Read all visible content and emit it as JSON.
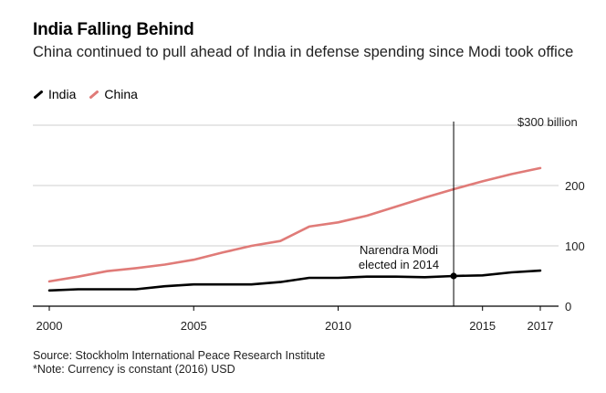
{
  "chart_data": {
    "type": "line",
    "title": "India Falling Behind",
    "subtitle": "China continued to pull ahead of India in defense spending since Modi took office",
    "x": [
      2000,
      2001,
      2002,
      2003,
      2004,
      2005,
      2006,
      2007,
      2008,
      2009,
      2010,
      2011,
      2012,
      2013,
      2014,
      2015,
      2016,
      2017
    ],
    "series": [
      {
        "name": "India",
        "color": "#000000",
        "values": [
          26,
          28,
          28,
          28,
          33,
          36,
          36,
          36,
          40,
          47,
          47,
          49,
          49,
          48,
          50,
          51,
          56,
          59
        ]
      },
      {
        "name": "China",
        "color": "#e07b78",
        "values": [
          41,
          49,
          58,
          63,
          69,
          77,
          89,
          100,
          108,
          132,
          139,
          150,
          165,
          180,
          194,
          207,
          219,
          229
        ]
      }
    ],
    "xticks": [
      {
        "value": 2000,
        "label": "2000"
      },
      {
        "value": 2005,
        "label": "2005"
      },
      {
        "value": 2010,
        "label": "2010"
      },
      {
        "value": 2015,
        "label": "2015"
      },
      {
        "value": 2017,
        "label": "2017"
      }
    ],
    "yticks": [
      {
        "value": 0,
        "label": "0"
      },
      {
        "value": 100,
        "label": "100"
      },
      {
        "value": 200,
        "label": "200"
      },
      {
        "value": 300,
        "label": "$300 billion"
      }
    ],
    "xlim": [
      2000,
      2017
    ],
    "ylim": [
      0,
      300
    ],
    "grid": "horizontal",
    "legend_position": "top-left",
    "annotation": {
      "x": 2014,
      "y": 50,
      "lines": [
        "Narendra Modi",
        "elected in 2014"
      ]
    }
  },
  "footer": {
    "source": "Source: Stockholm International Peace Research Institute",
    "note": "*Note: Currency is constant (2016) USD"
  }
}
